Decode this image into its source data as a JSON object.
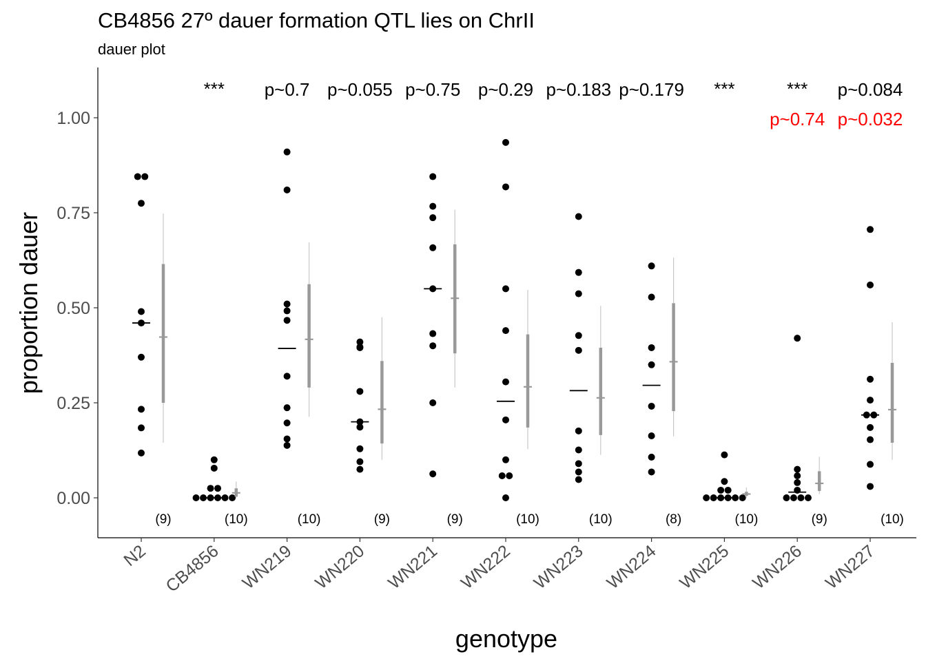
{
  "chart_data": {
    "type": "scatter",
    "title": "CB4856 27º dauer formation QTL lies on ChrII",
    "subtitle": "dauer plot",
    "xlabel": "genotype",
    "ylabel": "proportion dauer",
    "ylim": [
      -0.1,
      1.13
    ],
    "yticks": [
      "0.00",
      "0.25",
      "0.50",
      "0.75",
      "1.00"
    ],
    "ytick_values": [
      0,
      0.25,
      0.5,
      0.75,
      1.0
    ],
    "grid": false,
    "colors": {
      "points": "#000000",
      "summary": "#999999",
      "highlight": "#ff0000"
    },
    "categories": [
      "N2",
      "CB4856",
      "WN219",
      "WN220",
      "WN221",
      "WN222",
      "WN223",
      "WN224",
      "WN225",
      "WN226",
      "WN227"
    ],
    "groups": [
      {
        "genotype": "N2",
        "n_label": "(9)",
        "p_label": "",
        "p_label2": "",
        "points": [
          0.845,
          0.845,
          0.775,
          0.49,
          0.46,
          0.37,
          0.233,
          0.184,
          0.118
        ],
        "median": 0.46,
        "mean": 0.423,
        "inner": [
          0.25,
          0.615
        ],
        "outer": [
          0.145,
          0.748
        ]
      },
      {
        "genotype": "CB4856",
        "n_label": "(10)",
        "p_label": "***",
        "p_label2": "",
        "points": [
          0.1,
          0.078,
          0.025,
          0.025,
          0,
          0,
          0,
          0,
          0,
          0
        ],
        "median": 0.0,
        "mean": 0.013,
        "inner": [
          0.003,
          0.025
        ],
        "outer": [
          0.0,
          0.043
        ]
      },
      {
        "genotype": "WN219",
        "n_label": "(10)",
        "p_label": "p~0.7",
        "p_label2": "",
        "points": [
          0.91,
          0.81,
          0.51,
          0.492,
          0.467,
          0.32,
          0.237,
          0.197,
          0.155,
          0.138
        ],
        "median": 0.393,
        "mean": 0.417,
        "inner": [
          0.29,
          0.562
        ],
        "outer": [
          0.213,
          0.672
        ]
      },
      {
        "genotype": "WN220",
        "n_label": "(9)",
        "p_label": "p~0.055",
        "p_label2": "",
        "points": [
          0.41,
          0.397,
          0.395,
          0.28,
          0.2,
          0.186,
          0.129,
          0.095,
          0.075
        ],
        "median": 0.2,
        "mean": 0.233,
        "inner": [
          0.143,
          0.36
        ],
        "outer": [
          0.1,
          0.475
        ]
      },
      {
        "genotype": "WN221",
        "n_label": "(9)",
        "p_label": "p~0.75",
        "p_label2": "",
        "points": [
          0.845,
          0.767,
          0.737,
          0.658,
          0.55,
          0.432,
          0.4,
          0.25,
          0.063
        ],
        "median": 0.55,
        "mean": 0.525,
        "inner": [
          0.38,
          0.667
        ],
        "outer": [
          0.29,
          0.758
        ]
      },
      {
        "genotype": "WN222",
        "n_label": "(10)",
        "p_label": "p~0.29",
        "p_label2": "",
        "points": [
          0.935,
          0.818,
          0.55,
          0.44,
          0.305,
          0.205,
          0.1,
          0.058,
          0.058,
          0
        ],
        "median": 0.254,
        "mean": 0.292,
        "inner": [
          0.185,
          0.43
        ],
        "outer": [
          0.128,
          0.547
        ]
      },
      {
        "genotype": "WN223",
        "n_label": "(10)",
        "p_label": "p~0.183",
        "p_label2": "",
        "points": [
          0.74,
          0.593,
          0.537,
          0.427,
          0.388,
          0.176,
          0.126,
          0.09,
          0.068,
          0.048
        ],
        "median": 0.282,
        "mean": 0.263,
        "inner": [
          0.165,
          0.395
        ],
        "outer": [
          0.113,
          0.505
        ]
      },
      {
        "genotype": "WN224",
        "n_label": "(8)",
        "p_label": "p~0.179",
        "p_label2": "",
        "points": [
          0.61,
          0.528,
          0.395,
          0.35,
          0.241,
          0.163,
          0.107,
          0.068
        ],
        "median": 0.296,
        "mean": 0.358,
        "inner": [
          0.228,
          0.512
        ],
        "outer": [
          0.162,
          0.632
        ]
      },
      {
        "genotype": "WN225",
        "n_label": "(10)",
        "p_label": "***",
        "p_label2": "",
        "points": [
          0.113,
          0.043,
          0.02,
          0.02,
          0,
          0,
          0,
          0,
          0,
          0
        ],
        "median": 0.0,
        "mean": 0.01,
        "inner": [
          0.005,
          0.016
        ],
        "outer": [
          0.0,
          0.027
        ]
      },
      {
        "genotype": "WN226",
        "n_label": "(9)",
        "p_label": "***",
        "p_label2": "p~0.74",
        "points": [
          0.42,
          0.075,
          0.058,
          0.04,
          0.02,
          0,
          0,
          0,
          0
        ],
        "median": 0.015,
        "mean": 0.038,
        "inner": [
          0.018,
          0.07
        ],
        "outer": [
          0.01,
          0.108
        ]
      },
      {
        "genotype": "WN227",
        "n_label": "(10)",
        "p_label": "p~0.084",
        "p_label2": "p~0.032",
        "points": [
          0.706,
          0.56,
          0.312,
          0.257,
          0.218,
          0.218,
          0.185,
          0.153,
          0.088,
          0.03
        ],
        "median": 0.218,
        "mean": 0.232,
        "inner": [
          0.145,
          0.355
        ],
        "outer": [
          0.1,
          0.462
        ]
      }
    ]
  }
}
